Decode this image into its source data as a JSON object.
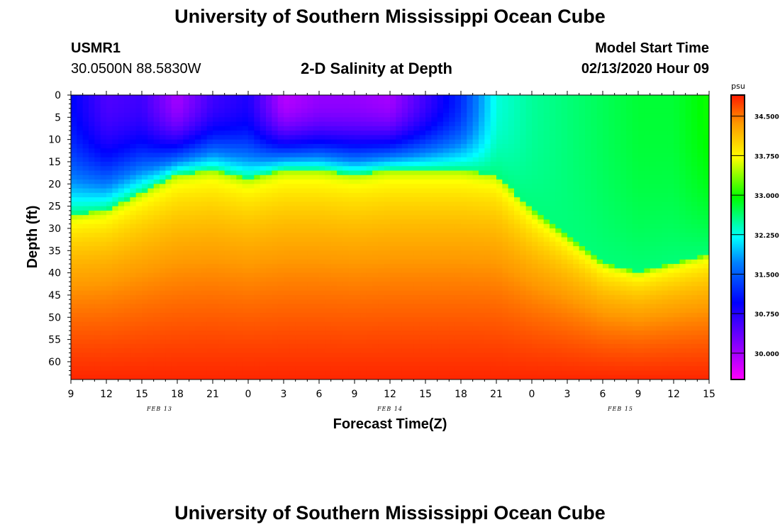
{
  "header": {
    "title": "University of Southern Mississippi Ocean Cube",
    "station": "USMR1",
    "location": "30.0500N 88.5830W",
    "plot_title": "2-D Salinity at Depth",
    "model_start_label": "Model Start Time",
    "model_start_value": "02/13/2020 Hour 09"
  },
  "footer": {
    "title": "University of Southern Mississippi Ocean Cube"
  },
  "colorbar": {
    "unit": "psu",
    "range": [
      29.5,
      34.9
    ],
    "tick_labels": [
      "34.500",
      "33.750",
      "33.000",
      "32.250",
      "31.500",
      "30.750",
      "30.000"
    ],
    "tick_values": [
      34.5,
      33.75,
      33.0,
      32.25,
      31.5,
      30.75,
      30.0
    ],
    "colors": {
      "magenta": "#ff00ff",
      "purple": "#8000ff",
      "blue": "#0000ff",
      "azure": "#0080ff",
      "cyan": "#00ffff",
      "green": "#00ff00",
      "yellow": "#ffff00",
      "orange": "#ff9900",
      "red": "#ff1a00"
    }
  },
  "chart_data": {
    "type": "heatmap",
    "title": "2-D Salinity at Depth",
    "xlabel": "Forecast Time(Z)",
    "ylabel": "Depth (ft)",
    "x_tick_labels": [
      "9",
      "12",
      "15",
      "18",
      "21",
      "0",
      "3",
      "6",
      "9",
      "12",
      "15",
      "18",
      "21",
      "0",
      "3",
      "6",
      "9",
      "12",
      "15"
    ],
    "x_hours": [
      0,
      3,
      6,
      9,
      12,
      15,
      18,
      21,
      24,
      27,
      30,
      33,
      36,
      39,
      42,
      45,
      48,
      51,
      54
    ],
    "date_labels": [
      {
        "label": "FEB 13",
        "hour": 7.5
      },
      {
        "label": "FEB 14",
        "hour": 27
      },
      {
        "label": "FEB 15",
        "hour": 46.5
      }
    ],
    "y_tick_labels": [
      "0",
      "5",
      "10",
      "15",
      "20",
      "25",
      "30",
      "35",
      "40",
      "45",
      "50",
      "55",
      "60"
    ],
    "y_values": [
      0,
      5,
      10,
      15,
      20,
      25,
      30,
      35,
      40,
      45,
      50,
      55,
      60
    ],
    "ylim": [
      0,
      64
    ],
    "xlim": [
      0,
      54
    ],
    "value_unit": "psu",
    "value_range": [
      29.5,
      34.9
    ],
    "surface_salinity_by_hour": [
      [
        0,
        31.0
      ],
      [
        3,
        30.5
      ],
      [
        6,
        30.6
      ],
      [
        9,
        30.0
      ],
      [
        12,
        30.6
      ],
      [
        15,
        30.8
      ],
      [
        18,
        29.9
      ],
      [
        21,
        30.1
      ],
      [
        24,
        30.1
      ],
      [
        27,
        30.0
      ],
      [
        30,
        30.6
      ],
      [
        33,
        31.2
      ],
      [
        36,
        32.3
      ],
      [
        39,
        32.5
      ],
      [
        42,
        32.6
      ],
      [
        45,
        32.7
      ],
      [
        48,
        32.8
      ],
      [
        51,
        32.8
      ],
      [
        54,
        33.0
      ]
    ],
    "halocline_depth_by_hour": [
      [
        0,
        27
      ],
      [
        3,
        26
      ],
      [
        6,
        22
      ],
      [
        9,
        18
      ],
      [
        12,
        17
      ],
      [
        15,
        19
      ],
      [
        18,
        17
      ],
      [
        21,
        17
      ],
      [
        24,
        18
      ],
      [
        27,
        17
      ],
      [
        30,
        17
      ],
      [
        33,
        17
      ],
      [
        36,
        18
      ],
      [
        39,
        26
      ],
      [
        42,
        32
      ],
      [
        45,
        38
      ],
      [
        48,
        40
      ],
      [
        51,
        38
      ],
      [
        54,
        36
      ]
    ],
    "bottom_salinity": 34.85
  }
}
